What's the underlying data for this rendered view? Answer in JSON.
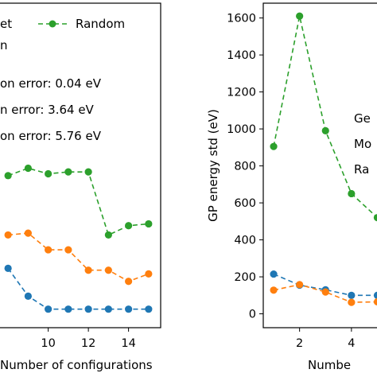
{
  "chart_data": [
    {
      "type": "line",
      "xlabel": "Number of configurations",
      "ylabel": "",
      "xlim": [
        7.4,
        15.6
      ],
      "ylim": [
        -0.1,
        1.65
      ],
      "xticks": [
        10,
        12,
        14
      ],
      "x": [
        8,
        9,
        10,
        11,
        12,
        13,
        14,
        15
      ],
      "series": [
        {
          "name": "Geodesic set",
          "legend_visible_text": "et",
          "color": "#1f77b4",
          "values": [
            0.22,
            0.07,
            0.0,
            0.0,
            0.0,
            0.0,
            0.0,
            0.0
          ]
        },
        {
          "name": "Model selection",
          "legend_visible_text": "n",
          "color": "#ff7f0e",
          "values": [
            0.4,
            0.41,
            0.32,
            0.32,
            0.21,
            0.21,
            0.15,
            0.19
          ]
        },
        {
          "name": "Random",
          "legend_visible_text": "Random",
          "color": "#2ca02c",
          "values": [
            0.72,
            0.76,
            0.73,
            0.74,
            0.74,
            0.4,
            0.45,
            0.46
          ]
        }
      ],
      "annotations": [
        {
          "text": "on error:  0.04 eV"
        },
        {
          "text": "n error:  3.64 eV"
        },
        {
          "text": "on error:  5.76 eV"
        }
      ]
    },
    {
      "type": "line",
      "xlabel": "Numbe",
      "ylabel": "GP energy std (eV)",
      "xlim": [
        0.6,
        5.2
      ],
      "ylim": [
        -75,
        1680
      ],
      "xticks": [
        2,
        4
      ],
      "yticks": [
        0,
        200,
        400,
        600,
        800,
        1000,
        1200,
        1400,
        1600
      ],
      "x": [
        1,
        2,
        3,
        4,
        5
      ],
      "series": [
        {
          "name": "Geodesic set",
          "color": "#1f77b4",
          "values": [
            215,
            155,
            130,
            100,
            100
          ]
        },
        {
          "name": "Model selection",
          "color": "#ff7f0e",
          "values": [
            128,
            158,
            118,
            62,
            65
          ]
        },
        {
          "name": "Random",
          "color": "#2ca02c",
          "values": [
            905,
            1610,
            990,
            650,
            520
          ]
        }
      ],
      "legend_partial": [
        {
          "text": "Ge"
        },
        {
          "text": "Mo"
        },
        {
          "text": "Ra"
        }
      ]
    }
  ]
}
